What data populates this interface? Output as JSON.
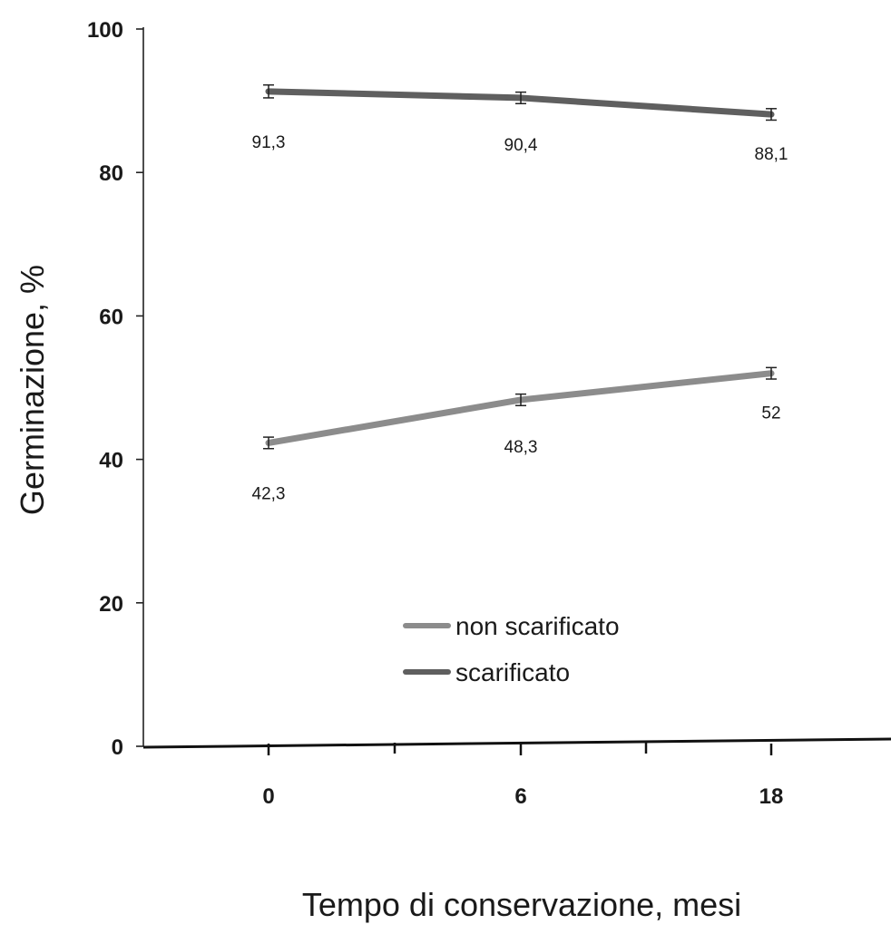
{
  "chart_data": {
    "type": "line",
    "categories": [
      "0",
      "6",
      "18"
    ],
    "series": [
      {
        "name": "non scarificato",
        "values": [
          42.3,
          48.3,
          52
        ],
        "labels": [
          "42,3",
          "48,3",
          "52"
        ],
        "error": [
          0.8,
          0.8,
          0.8
        ],
        "color": "#8c8c8c"
      },
      {
        "name": "scarificato",
        "values": [
          91.3,
          90.4,
          88.1
        ],
        "labels": [
          "91,3",
          "90,4",
          "88,1"
        ],
        "error": [
          0.9,
          0.8,
          0.8
        ],
        "color": "#5f5f5f"
      }
    ],
    "title": "",
    "xlabel": "Tempo di conservazione, mesi",
    "ylabel": "Germinazione, %",
    "ylim": [
      0,
      100
    ],
    "yticks": [
      "0",
      "20",
      "40",
      "60",
      "80",
      "100"
    ],
    "grid": false,
    "legend_position": "lower-center",
    "error_bars": true
  }
}
